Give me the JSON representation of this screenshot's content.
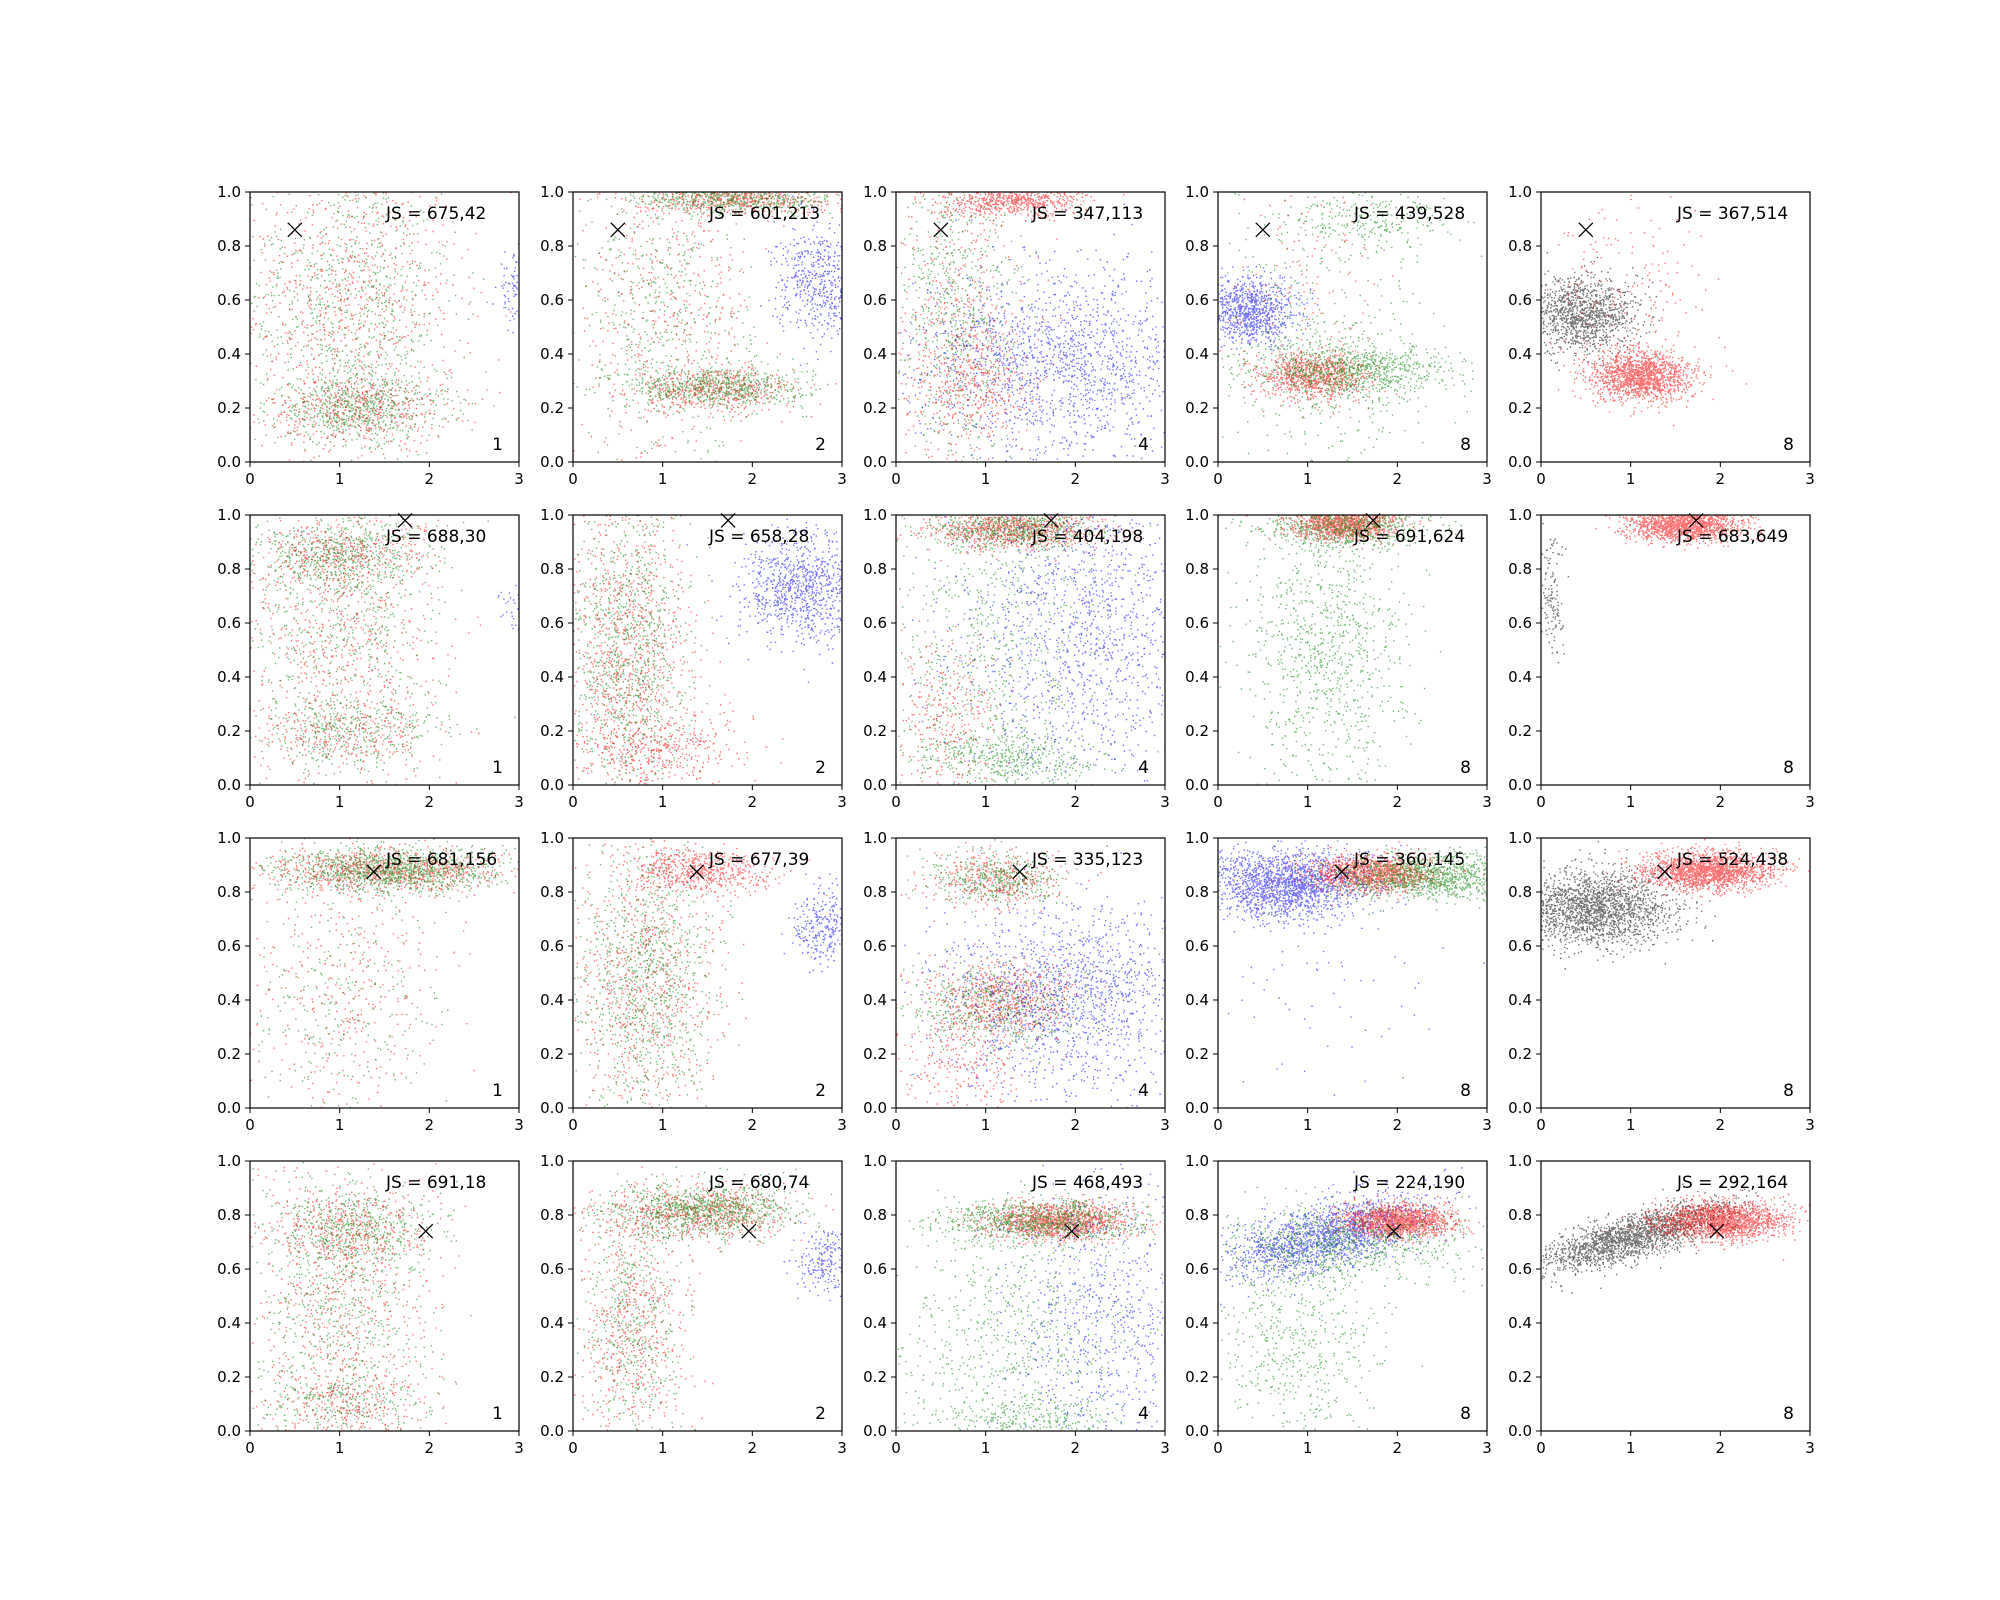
{
  "chart_data": {
    "type": "scatter",
    "layout": "grid",
    "rows": 4,
    "cols": 5,
    "xlim": [
      0,
      3
    ],
    "ylim": [
      0,
      1
    ],
    "xticks": [
      "0",
      "1",
      "2",
      "3"
    ],
    "yticks": [
      "0.0",
      "0.2",
      "0.4",
      "0.6",
      "0.8",
      "1.0"
    ],
    "grid": false,
    "colors": {
      "red": "#ff0000",
      "green": "#008000",
      "blue": "#0000ff",
      "black": "#000000"
    },
    "marker": {
      "symbol": "x",
      "color": "#000000"
    },
    "panels": [
      {
        "js": "JS = 675,42",
        "label": "1",
        "marker_xy": [
          0.5,
          0.86
        ],
        "clusters": [
          {
            "color": "red",
            "n": 900,
            "cx": 1.1,
            "cy": 0.6,
            "sx": 0.6,
            "sy": 0.3
          },
          {
            "color": "green",
            "n": 900,
            "cx": 1.1,
            "cy": 0.6,
            "sx": 0.6,
            "sy": 0.3
          },
          {
            "color": "red",
            "n": 450,
            "cx": 1.2,
            "cy": 0.2,
            "sx": 0.5,
            "sy": 0.06
          },
          {
            "color": "green",
            "n": 550,
            "cx": 1.2,
            "cy": 0.2,
            "sx": 0.5,
            "sy": 0.06
          },
          {
            "color": "blue",
            "n": 90,
            "cx": 2.95,
            "cy": 0.65,
            "sx": 0.1,
            "sy": 0.06
          }
        ]
      },
      {
        "js": "JS = 601,213",
        "label": "2",
        "marker_xy": [
          0.5,
          0.86
        ],
        "clusters": [
          {
            "color": "red",
            "n": 500,
            "cx": 1.0,
            "cy": 0.55,
            "sx": 0.5,
            "sy": 0.28
          },
          {
            "color": "green",
            "n": 500,
            "cx": 1.0,
            "cy": 0.55,
            "sx": 0.5,
            "sy": 0.28
          },
          {
            "color": "red",
            "n": 500,
            "cx": 1.6,
            "cy": 0.27,
            "sx": 0.45,
            "sy": 0.04
          },
          {
            "color": "green",
            "n": 650,
            "cx": 1.6,
            "cy": 0.28,
            "sx": 0.5,
            "sy": 0.04
          },
          {
            "color": "red",
            "n": 600,
            "cx": 1.8,
            "cy": 0.98,
            "sx": 0.55,
            "sy": 0.03
          },
          {
            "color": "green",
            "n": 600,
            "cx": 1.8,
            "cy": 0.98,
            "sx": 0.55,
            "sy": 0.03
          },
          {
            "color": "blue",
            "n": 550,
            "cx": 2.75,
            "cy": 0.67,
            "sx": 0.25,
            "sy": 0.1
          }
        ]
      },
      {
        "js": "JS = 347,113",
        "label": "4",
        "marker_xy": [
          0.5,
          0.86
        ],
        "clusters": [
          {
            "color": "red",
            "n": 500,
            "cx": 0.7,
            "cy": 0.5,
            "sx": 0.35,
            "sy": 0.3
          },
          {
            "color": "green",
            "n": 700,
            "cx": 0.7,
            "cy": 0.55,
            "sx": 0.35,
            "sy": 0.3
          },
          {
            "color": "red",
            "n": 700,
            "cx": 1.3,
            "cy": 0.97,
            "sx": 0.4,
            "sy": 0.03
          },
          {
            "color": "blue",
            "n": 1600,
            "cx": 1.9,
            "cy": 0.37,
            "sx": 0.8,
            "sy": 0.18
          },
          {
            "color": "red",
            "n": 300,
            "cx": 0.9,
            "cy": 0.3,
            "sx": 0.3,
            "sy": 0.1
          }
        ]
      },
      {
        "js": "JS = 439,528",
        "label": "8",
        "marker_xy": [
          0.5,
          0.86
        ],
        "clusters": [
          {
            "color": "blue",
            "n": 900,
            "cx": 0.35,
            "cy": 0.56,
            "sx": 0.25,
            "sy": 0.06
          },
          {
            "color": "red",
            "n": 900,
            "cx": 1.05,
            "cy": 0.32,
            "sx": 0.3,
            "sy": 0.045
          },
          {
            "color": "green",
            "n": 900,
            "cx": 1.5,
            "cy": 0.34,
            "sx": 0.55,
            "sy": 0.05
          },
          {
            "color": "green",
            "n": 450,
            "cx": 1.2,
            "cy": 0.4,
            "sx": 0.6,
            "sy": 0.3
          },
          {
            "color": "green",
            "n": 250,
            "cx": 1.7,
            "cy": 0.9,
            "sx": 0.5,
            "sy": 0.05
          },
          {
            "color": "red",
            "n": 120,
            "cx": 0.9,
            "cy": 0.75,
            "sx": 0.4,
            "sy": 0.2
          }
        ]
      },
      {
        "js": "JS = 367,514",
        "label": "8",
        "marker_xy": [
          0.5,
          0.86
        ],
        "clusters": [
          {
            "color": "black",
            "n": 1200,
            "cx": 0.45,
            "cy": 0.55,
            "sx": 0.3,
            "sy": 0.07
          },
          {
            "color": "red",
            "n": 1500,
            "cx": 1.1,
            "cy": 0.32,
            "sx": 0.28,
            "sy": 0.045
          },
          {
            "color": "red",
            "n": 200,
            "cx": 0.9,
            "cy": 0.65,
            "sx": 0.45,
            "sy": 0.2
          }
        ]
      },
      {
        "js": "JS = 688,30",
        "label": "1",
        "marker_xy": [
          1.73,
          0.98
        ],
        "clusters": [
          {
            "color": "red",
            "n": 700,
            "cx": 1.0,
            "cy": 0.55,
            "sx": 0.55,
            "sy": 0.3
          },
          {
            "color": "green",
            "n": 700,
            "cx": 1.0,
            "cy": 0.55,
            "sx": 0.55,
            "sy": 0.3
          },
          {
            "color": "red",
            "n": 350,
            "cx": 1.0,
            "cy": 0.85,
            "sx": 0.45,
            "sy": 0.06
          },
          {
            "color": "green",
            "n": 450,
            "cx": 1.0,
            "cy": 0.85,
            "sx": 0.45,
            "sy": 0.06
          },
          {
            "color": "red",
            "n": 250,
            "cx": 1.0,
            "cy": 0.2,
            "sx": 0.5,
            "sy": 0.06
          },
          {
            "color": "green",
            "n": 300,
            "cx": 1.1,
            "cy": 0.2,
            "sx": 0.5,
            "sy": 0.06
          },
          {
            "color": "blue",
            "n": 40,
            "cx": 2.95,
            "cy": 0.65,
            "sx": 0.08,
            "sy": 0.05
          }
        ]
      },
      {
        "js": "JS = 658,28",
        "label": "2",
        "marker_xy": [
          1.73,
          0.98
        ],
        "clusters": [
          {
            "color": "red",
            "n": 1000,
            "cx": 0.6,
            "cy": 0.5,
            "sx": 0.35,
            "sy": 0.3
          },
          {
            "color": "green",
            "n": 1000,
            "cx": 0.6,
            "cy": 0.5,
            "sx": 0.35,
            "sy": 0.3
          },
          {
            "color": "red",
            "n": 350,
            "cx": 1.0,
            "cy": 0.15,
            "sx": 0.45,
            "sy": 0.07
          },
          {
            "color": "blue",
            "n": 900,
            "cx": 2.55,
            "cy": 0.73,
            "sx": 0.35,
            "sy": 0.1
          }
        ]
      },
      {
        "js": "JS = 404,198",
        "label": "4",
        "marker_xy": [
          1.73,
          0.98
        ],
        "clusters": [
          {
            "color": "red",
            "n": 900,
            "cx": 1.3,
            "cy": 0.95,
            "sx": 0.45,
            "sy": 0.04
          },
          {
            "color": "green",
            "n": 600,
            "cx": 1.3,
            "cy": 0.95,
            "sx": 0.45,
            "sy": 0.04
          },
          {
            "color": "green",
            "n": 700,
            "cx": 1.1,
            "cy": 0.5,
            "sx": 0.6,
            "sy": 0.3
          },
          {
            "color": "green",
            "n": 450,
            "cx": 1.2,
            "cy": 0.1,
            "sx": 0.55,
            "sy": 0.05
          },
          {
            "color": "blue",
            "n": 1300,
            "cx": 2.1,
            "cy": 0.55,
            "sx": 0.7,
            "sy": 0.3
          },
          {
            "color": "red",
            "n": 300,
            "cx": 0.6,
            "cy": 0.25,
            "sx": 0.3,
            "sy": 0.15
          }
        ]
      },
      {
        "js": "JS = 691,624",
        "label": "8",
        "marker_xy": [
          1.73,
          0.98
        ],
        "clusters": [
          {
            "color": "red",
            "n": 1200,
            "cx": 1.4,
            "cy": 0.97,
            "sx": 0.3,
            "sy": 0.03
          },
          {
            "color": "green",
            "n": 700,
            "cx": 1.4,
            "cy": 0.96,
            "sx": 0.45,
            "sy": 0.04
          },
          {
            "color": "green",
            "n": 900,
            "cx": 1.2,
            "cy": 0.5,
            "sx": 0.45,
            "sy": 0.25
          }
        ]
      },
      {
        "js": "JS = 683,649",
        "label": "8",
        "marker_xy": [
          1.73,
          0.98
        ],
        "clusters": [
          {
            "color": "red",
            "n": 1600,
            "cx": 1.6,
            "cy": 0.97,
            "sx": 0.3,
            "sy": 0.03
          },
          {
            "color": "black",
            "n": 130,
            "cx": 0.1,
            "cy": 0.7,
            "sx": 0.08,
            "sy": 0.1
          }
        ]
      },
      {
        "js": "JS = 681,156",
        "label": "1",
        "marker_xy": [
          1.38,
          0.875
        ],
        "clusters": [
          {
            "color": "red",
            "n": 900,
            "cx": 1.5,
            "cy": 0.88,
            "sx": 0.65,
            "sy": 0.04
          },
          {
            "color": "green",
            "n": 1100,
            "cx": 1.6,
            "cy": 0.88,
            "sx": 0.6,
            "sy": 0.04
          },
          {
            "color": "red",
            "n": 350,
            "cx": 1.0,
            "cy": 0.4,
            "sx": 0.55,
            "sy": 0.25
          },
          {
            "color": "green",
            "n": 300,
            "cx": 1.0,
            "cy": 0.4,
            "sx": 0.55,
            "sy": 0.25
          }
        ]
      },
      {
        "js": "JS = 677,39",
        "label": "2",
        "marker_xy": [
          1.38,
          0.875
        ],
        "clusters": [
          {
            "color": "red",
            "n": 550,
            "cx": 1.4,
            "cy": 0.88,
            "sx": 0.4,
            "sy": 0.04
          },
          {
            "color": "red",
            "n": 800,
            "cx": 0.8,
            "cy": 0.45,
            "sx": 0.4,
            "sy": 0.28
          },
          {
            "color": "green",
            "n": 1000,
            "cx": 0.8,
            "cy": 0.45,
            "sx": 0.4,
            "sy": 0.28
          },
          {
            "color": "blue",
            "n": 300,
            "cx": 2.8,
            "cy": 0.67,
            "sx": 0.18,
            "sy": 0.07
          }
        ]
      },
      {
        "js": "JS = 335,123",
        "label": "4",
        "marker_xy": [
          1.38,
          0.875
        ],
        "clusters": [
          {
            "color": "red",
            "n": 400,
            "cx": 1.1,
            "cy": 0.85,
            "sx": 0.35,
            "sy": 0.05
          },
          {
            "color": "green",
            "n": 400,
            "cx": 1.1,
            "cy": 0.85,
            "sx": 0.35,
            "sy": 0.05
          },
          {
            "color": "red",
            "n": 700,
            "cx": 1.15,
            "cy": 0.4,
            "sx": 0.4,
            "sy": 0.07
          },
          {
            "color": "green",
            "n": 500,
            "cx": 1.1,
            "cy": 0.38,
            "sx": 0.45,
            "sy": 0.08
          },
          {
            "color": "blue",
            "n": 1400,
            "cx": 1.9,
            "cy": 0.4,
            "sx": 0.7,
            "sy": 0.18
          },
          {
            "color": "red",
            "n": 250,
            "cx": 0.7,
            "cy": 0.15,
            "sx": 0.35,
            "sy": 0.1
          }
        ]
      },
      {
        "js": "JS = 360,145",
        "label": "8",
        "marker_xy": [
          1.38,
          0.875
        ],
        "clusters": [
          {
            "color": "blue",
            "n": 1800,
            "cx": 0.75,
            "cy": 0.83,
            "sx": 0.45,
            "sy": 0.06
          },
          {
            "color": "red",
            "n": 1200,
            "cx": 1.7,
            "cy": 0.87,
            "sx": 0.35,
            "sy": 0.035
          },
          {
            "color": "green",
            "n": 1200,
            "cx": 2.3,
            "cy": 0.86,
            "sx": 0.5,
            "sy": 0.04
          },
          {
            "color": "blue",
            "n": 80,
            "cx": 1.2,
            "cy": 0.5,
            "sx": 0.7,
            "sy": 0.2
          }
        ]
      },
      {
        "js": "JS = 524,438",
        "label": "8",
        "marker_xy": [
          1.38,
          0.875
        ],
        "clusters": [
          {
            "color": "black",
            "n": 2000,
            "cx": 0.6,
            "cy": 0.74,
            "sx": 0.42,
            "sy": 0.07
          },
          {
            "color": "red",
            "n": 1800,
            "cx": 1.85,
            "cy": 0.88,
            "sx": 0.35,
            "sy": 0.035
          }
        ]
      },
      {
        "js": "JS = 691,18",
        "label": "1",
        "marker_xy": [
          1.96,
          0.74
        ],
        "clusters": [
          {
            "color": "red",
            "n": 700,
            "cx": 1.0,
            "cy": 0.45,
            "sx": 0.5,
            "sy": 0.3
          },
          {
            "color": "green",
            "n": 700,
            "cx": 1.0,
            "cy": 0.45,
            "sx": 0.5,
            "sy": 0.3
          },
          {
            "color": "red",
            "n": 350,
            "cx": 1.1,
            "cy": 0.75,
            "sx": 0.45,
            "sy": 0.07
          },
          {
            "color": "green",
            "n": 450,
            "cx": 1.1,
            "cy": 0.75,
            "sx": 0.45,
            "sy": 0.07
          },
          {
            "color": "red",
            "n": 200,
            "cx": 1.0,
            "cy": 0.1,
            "sx": 0.5,
            "sy": 0.06
          },
          {
            "color": "green",
            "n": 200,
            "cx": 1.0,
            "cy": 0.1,
            "sx": 0.5,
            "sy": 0.06
          }
        ]
      },
      {
        "js": "JS = 680,74",
        "label": "2",
        "marker_xy": [
          1.96,
          0.74
        ],
        "clusters": [
          {
            "color": "red",
            "n": 700,
            "cx": 1.4,
            "cy": 0.81,
            "sx": 0.5,
            "sy": 0.05
          },
          {
            "color": "green",
            "n": 900,
            "cx": 1.5,
            "cy": 0.82,
            "sx": 0.5,
            "sy": 0.05
          },
          {
            "color": "red",
            "n": 600,
            "cx": 0.65,
            "cy": 0.4,
            "sx": 0.3,
            "sy": 0.25
          },
          {
            "color": "green",
            "n": 500,
            "cx": 0.65,
            "cy": 0.4,
            "sx": 0.3,
            "sy": 0.25
          },
          {
            "color": "blue",
            "n": 200,
            "cx": 2.8,
            "cy": 0.63,
            "sx": 0.15,
            "sy": 0.06
          }
        ]
      },
      {
        "js": "JS = 468,493",
        "label": "4",
        "marker_xy": [
          1.96,
          0.74
        ],
        "clusters": [
          {
            "color": "red",
            "n": 1200,
            "cx": 1.8,
            "cy": 0.78,
            "sx": 0.4,
            "sy": 0.035
          },
          {
            "color": "green",
            "n": 900,
            "cx": 1.6,
            "cy": 0.78,
            "sx": 0.55,
            "sy": 0.04
          },
          {
            "color": "green",
            "n": 700,
            "cx": 1.3,
            "cy": 0.35,
            "sx": 0.7,
            "sy": 0.25
          },
          {
            "color": "blue",
            "n": 700,
            "cx": 2.3,
            "cy": 0.4,
            "sx": 0.55,
            "sy": 0.25
          },
          {
            "color": "green",
            "n": 250,
            "cx": 1.4,
            "cy": 0.05,
            "sx": 0.5,
            "sy": 0.04
          }
        ]
      },
      {
        "js": "JS = 224,190",
        "label": "8",
        "marker_xy": [
          1.96,
          0.74
        ],
        "clusters": [
          {
            "color": "blue",
            "n": 1600,
            "cx": 1.2,
            "cy": 0.72,
            "sx": 0.55,
            "sy": 0.06,
            "slope": 0.08
          },
          {
            "color": "red",
            "n": 1500,
            "cx": 2.0,
            "cy": 0.78,
            "sx": 0.3,
            "sy": 0.03
          },
          {
            "color": "green",
            "n": 800,
            "cx": 1.5,
            "cy": 0.7,
            "sx": 0.7,
            "sy": 0.07
          },
          {
            "color": "green",
            "n": 600,
            "cx": 0.9,
            "cy": 0.35,
            "sx": 0.45,
            "sy": 0.22
          }
        ]
      },
      {
        "js": "JS = 292,164",
        "label": "8",
        "marker_xy": [
          1.96,
          0.74
        ],
        "clusters": [
          {
            "color": "black",
            "n": 2000,
            "cx": 1.0,
            "cy": 0.72,
            "sx": 0.55,
            "sy": 0.04,
            "slope": 0.09
          },
          {
            "color": "red",
            "n": 1800,
            "cx": 2.0,
            "cy": 0.78,
            "sx": 0.35,
            "sy": 0.035
          }
        ]
      }
    ]
  }
}
